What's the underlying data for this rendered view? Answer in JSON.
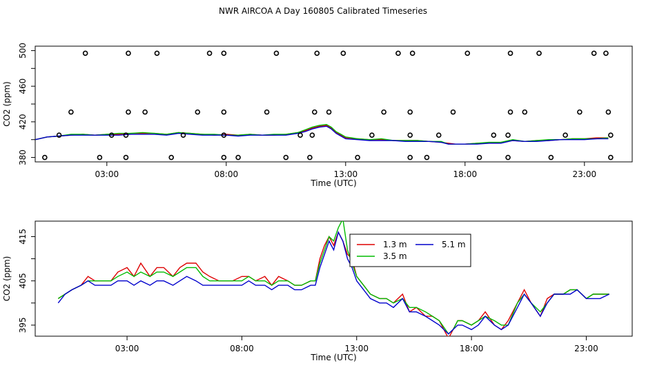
{
  "title": "NWR AIRCOA A  Day 160805  Calibrated Timeseries",
  "colors": {
    "s1": "#dd0000",
    "s2": "#00bb00",
    "s3": "#0000cc"
  },
  "chart_data": [
    {
      "type": "scatter",
      "xlabel": "Time (UTC)",
      "ylabel": "CO2 (ppm)",
      "xlim": [
        0,
        25
      ],
      "ylim": [
        375,
        505
      ],
      "xticks": [
        3,
        8,
        13,
        18,
        23
      ],
      "xtick_labels": [
        "03:00",
        "08:00",
        "13:00",
        "18:00",
        "23:00"
      ],
      "yticks": [
        380,
        400,
        420,
        440,
        460,
        480,
        500
      ],
      "ytick_labels": [
        "380",
        "",
        "420",
        "",
        "460",
        "",
        "500"
      ],
      "legend": "none",
      "points": [
        {
          "x": 0.4,
          "y": 380
        },
        {
          "x": 1.0,
          "y": 405
        },
        {
          "x": 1.5,
          "y": 431
        },
        {
          "x": 2.1,
          "y": 497
        },
        {
          "x": 2.7,
          "y": 380
        },
        {
          "x": 3.2,
          "y": 405
        },
        {
          "x": 3.8,
          "y": 380
        },
        {
          "x": 3.8,
          "y": 405
        },
        {
          "x": 3.9,
          "y": 431
        },
        {
          "x": 3.9,
          "y": 497
        },
        {
          "x": 4.6,
          "y": 431
        },
        {
          "x": 5.1,
          "y": 497
        },
        {
          "x": 5.7,
          "y": 380
        },
        {
          "x": 6.2,
          "y": 405
        },
        {
          "x": 6.8,
          "y": 431
        },
        {
          "x": 7.3,
          "y": 497
        },
        {
          "x": 7.9,
          "y": 380
        },
        {
          "x": 7.9,
          "y": 405
        },
        {
          "x": 7.9,
          "y": 431
        },
        {
          "x": 7.9,
          "y": 497
        },
        {
          "x": 8.5,
          "y": 380
        },
        {
          "x": 9.7,
          "y": 431
        },
        {
          "x": 10.1,
          "y": 497
        },
        {
          "x": 10.5,
          "y": 380
        },
        {
          "x": 11.1,
          "y": 405
        },
        {
          "x": 11.5,
          "y": 380
        },
        {
          "x": 11.6,
          "y": 405
        },
        {
          "x": 11.7,
          "y": 431
        },
        {
          "x": 11.8,
          "y": 497
        },
        {
          "x": 12.3,
          "y": 431
        },
        {
          "x": 12.9,
          "y": 497
        },
        {
          "x": 13.5,
          "y": 380
        },
        {
          "x": 14.1,
          "y": 405
        },
        {
          "x": 14.6,
          "y": 431
        },
        {
          "x": 15.2,
          "y": 497
        },
        {
          "x": 15.7,
          "y": 380
        },
        {
          "x": 15.7,
          "y": 405
        },
        {
          "x": 15.7,
          "y": 431
        },
        {
          "x": 15.8,
          "y": 497
        },
        {
          "x": 16.4,
          "y": 380
        },
        {
          "x": 16.9,
          "y": 405
        },
        {
          "x": 17.5,
          "y": 431
        },
        {
          "x": 18.1,
          "y": 497
        },
        {
          "x": 18.6,
          "y": 380
        },
        {
          "x": 19.2,
          "y": 405
        },
        {
          "x": 19.8,
          "y": 380
        },
        {
          "x": 19.8,
          "y": 405
        },
        {
          "x": 19.9,
          "y": 431
        },
        {
          "x": 19.9,
          "y": 497
        },
        {
          "x": 20.5,
          "y": 431
        },
        {
          "x": 21.1,
          "y": 497
        },
        {
          "x": 21.6,
          "y": 380
        },
        {
          "x": 22.2,
          "y": 405
        },
        {
          "x": 22.8,
          "y": 431
        },
        {
          "x": 23.4,
          "y": 497
        },
        {
          "x": 23.9,
          "y": 497
        },
        {
          "x": 24.0,
          "y": 431
        },
        {
          "x": 24.1,
          "y": 405
        },
        {
          "x": 24.1,
          "y": 380
        }
      ],
      "series": [
        {
          "color_key": "s1",
          "x": [
            0,
            0.5,
            1,
            1.5,
            2,
            2.5,
            3,
            3.5,
            4,
            4.5,
            5,
            5.5,
            6,
            6.5,
            7,
            7.5,
            8,
            8.5,
            9,
            9.5,
            10,
            10.5,
            11,
            11.3,
            11.6,
            11.9,
            12.2,
            12.4,
            12.6,
            12.8,
            13,
            13.5,
            14,
            14.5,
            15,
            15.5,
            16,
            16.5,
            17,
            17.3,
            17.6,
            18,
            18.5,
            19,
            19.5,
            20,
            20.5,
            21,
            21.5,
            22,
            22.5,
            23,
            23.5,
            24
          ],
          "y": [
            400,
            403,
            404,
            405,
            406,
            405,
            406,
            406,
            407,
            407,
            407,
            406,
            408,
            407,
            406,
            405,
            406,
            405,
            406,
            405,
            405,
            406,
            408,
            410,
            413,
            415,
            416,
            413,
            408,
            405,
            402,
            401,
            400,
            400,
            399,
            399,
            399,
            398,
            397,
            396,
            395,
            395,
            396,
            396,
            397,
            399,
            398,
            399,
            399,
            400,
            401,
            401,
            402,
            402
          ]
        },
        {
          "color_key": "s2",
          "x": [
            0,
            0.5,
            1,
            1.5,
            2,
            2.5,
            3,
            3.5,
            4,
            4.5,
            5,
            5.5,
            6,
            6.5,
            7,
            7.5,
            8,
            8.5,
            9,
            9.5,
            10,
            10.5,
            11,
            11.3,
            11.6,
            11.9,
            12.2,
            12.4,
            12.6,
            12.8,
            13,
            13.5,
            14,
            14.5,
            15,
            15.5,
            16,
            16.5,
            17,
            17.3,
            17.6,
            18,
            18.5,
            19,
            19.5,
            20,
            20.5,
            21,
            21.5,
            22,
            22.5,
            23,
            23.5,
            24
          ],
          "y": [
            400,
            403,
            404,
            406,
            406,
            405,
            406,
            407,
            407,
            408,
            407,
            406,
            408,
            407,
            406,
            406,
            405,
            405,
            406,
            405,
            406,
            406,
            408,
            411,
            414,
            416,
            417,
            414,
            409,
            406,
            403,
            401,
            400,
            401,
            399,
            399,
            399,
            398,
            398,
            395,
            395,
            395,
            396,
            397,
            397,
            400,
            398,
            399,
            400,
            400,
            401,
            401,
            401,
            402
          ]
        },
        {
          "color_key": "s3",
          "x": [
            0,
            0.5,
            1,
            1.5,
            2,
            2.5,
            3,
            3.5,
            4,
            4.5,
            5,
            5.5,
            6,
            6.5,
            7,
            7.5,
            8,
            8.5,
            9,
            9.5,
            10,
            10.5,
            11,
            11.3,
            11.6,
            11.9,
            12.2,
            12.4,
            12.6,
            12.8,
            13,
            13.5,
            14,
            14.5,
            15,
            15.5,
            16,
            16.5,
            17,
            17.3,
            17.6,
            18,
            18.5,
            19,
            19.5,
            20,
            20.5,
            21,
            21.5,
            22,
            22.5,
            23,
            23.5,
            24
          ],
          "y": [
            400,
            403,
            404,
            405,
            405,
            405,
            405,
            405,
            406,
            406,
            406,
            405,
            407,
            406,
            405,
            405,
            405,
            404,
            405,
            405,
            405,
            405,
            407,
            409,
            412,
            414,
            415,
            412,
            407,
            404,
            401,
            400,
            399,
            399,
            399,
            398,
            398,
            398,
            397,
            395,
            395,
            395,
            395,
            396,
            396,
            399,
            398,
            398,
            399,
            400,
            400,
            400,
            401,
            401
          ]
        }
      ]
    },
    {
      "type": "line",
      "xlabel": "Time (UTC)",
      "ylabel": "CO2 (ppm)",
      "xlim": [
        -1,
        25
      ],
      "ylim": [
        392.5,
        418.5
      ],
      "xticks": [
        3,
        8,
        13,
        18,
        23
      ],
      "xtick_labels": [
        "03:00",
        "08:00",
        "13:00",
        "18:00",
        "23:00"
      ],
      "yticks": [
        395,
        400,
        405,
        410,
        415
      ],
      "ytick_labels": [
        "395",
        "",
        "405",
        "",
        "415"
      ],
      "legend": "top-center",
      "series": [
        {
          "name": "1.3 m",
          "color_key": "s1",
          "x": [
            0,
            0.3,
            0.6,
            1,
            1.3,
            1.6,
            2,
            2.3,
            2.6,
            3,
            3.3,
            3.6,
            4,
            4.3,
            4.6,
            5,
            5.3,
            5.6,
            6,
            6.3,
            6.6,
            7,
            7.3,
            7.6,
            8,
            8.3,
            8.6,
            9,
            9.3,
            9.6,
            10,
            10.3,
            10.6,
            11,
            11.2,
            11.4,
            11.6,
            11.8,
            12,
            12.2,
            12.4,
            12.6,
            12.8,
            13,
            13.3,
            13.6,
            14,
            14.3,
            14.6,
            15,
            15.3,
            15.6,
            16,
            16.3,
            16.6,
            17,
            17.2,
            17.4,
            17.6,
            18,
            18.3,
            18.6,
            19,
            19.3,
            19.6,
            20,
            20.3,
            20.6,
            21,
            21.3,
            21.6,
            22,
            22.3,
            22.6,
            23,
            23.3,
            23.6,
            24
          ],
          "y": [
            401,
            402,
            403,
            404,
            406,
            405,
            405,
            405,
            407,
            408,
            406,
            409,
            406,
            408,
            408,
            406,
            408,
            409,
            409,
            407,
            406,
            405,
            405,
            405,
            406,
            406,
            405,
            406,
            404,
            406,
            405,
            404,
            404,
            405,
            405,
            410,
            413,
            415,
            413,
            416,
            414,
            411,
            410,
            406,
            404,
            402,
            401,
            401,
            400,
            402,
            398,
            399,
            397,
            397,
            396,
            392,
            394,
            396,
            396,
            395,
            396,
            398,
            395,
            394,
            396,
            400,
            403,
            400,
            397,
            401,
            402,
            402,
            403,
            403,
            401,
            402,
            402,
            402
          ]
        },
        {
          "name": "3.5 m",
          "color_key": "s2",
          "x": [
            0,
            0.3,
            0.6,
            1,
            1.3,
            1.6,
            2,
            2.3,
            2.6,
            3,
            3.3,
            3.6,
            4,
            4.3,
            4.6,
            5,
            5.3,
            5.6,
            6,
            6.3,
            6.6,
            7,
            7.3,
            7.6,
            8,
            8.3,
            8.6,
            9,
            9.3,
            9.6,
            10,
            10.3,
            10.6,
            11,
            11.2,
            11.4,
            11.6,
            11.8,
            12,
            12.2,
            12.4,
            12.6,
            12.8,
            13,
            13.3,
            13.6,
            14,
            14.3,
            14.6,
            15,
            15.3,
            15.6,
            16,
            16.3,
            16.6,
            17,
            17.2,
            17.4,
            17.6,
            18,
            18.3,
            18.6,
            19,
            19.3,
            19.6,
            20,
            20.3,
            20.6,
            21,
            21.3,
            21.6,
            22,
            22.3,
            22.6,
            23,
            23.3,
            23.6,
            24
          ],
          "y": [
            401,
            402,
            403,
            404,
            405,
            405,
            405,
            405,
            406,
            407,
            406,
            407,
            406,
            407,
            407,
            406,
            407,
            408,
            408,
            406,
            405,
            405,
            405,
            405,
            405,
            406,
            405,
            405,
            404,
            405,
            405,
            404,
            404,
            405,
            405,
            409,
            412,
            415,
            414,
            417,
            419,
            412,
            409,
            406,
            404,
            402,
            401,
            401,
            400,
            401,
            399,
            399,
            398,
            397,
            396,
            393,
            394,
            396,
            396,
            395,
            396,
            397,
            396,
            395,
            395,
            400,
            402,
            400,
            398,
            400,
            402,
            402,
            403,
            403,
            401,
            402,
            402,
            402
          ]
        },
        {
          "name": "5.1 m",
          "color_key": "s3",
          "x": [
            0,
            0.3,
            0.6,
            1,
            1.3,
            1.6,
            2,
            2.3,
            2.6,
            3,
            3.3,
            3.6,
            4,
            4.3,
            4.6,
            5,
            5.3,
            5.6,
            6,
            6.3,
            6.6,
            7,
            7.3,
            7.6,
            8,
            8.3,
            8.6,
            9,
            9.3,
            9.6,
            10,
            10.3,
            10.6,
            11,
            11.2,
            11.4,
            11.6,
            11.8,
            12,
            12.2,
            12.4,
            12.6,
            12.8,
            13,
            13.3,
            13.6,
            14,
            14.3,
            14.6,
            15,
            15.3,
            15.6,
            16,
            16.3,
            16.6,
            17,
            17.2,
            17.4,
            17.6,
            18,
            18.3,
            18.6,
            19,
            19.3,
            19.6,
            20,
            20.3,
            20.6,
            21,
            21.3,
            21.6,
            22,
            22.3,
            22.6,
            23,
            23.3,
            23.6,
            24
          ],
          "y": [
            400,
            402,
            403,
            404,
            405,
            404,
            404,
            404,
            405,
            405,
            404,
            405,
            404,
            405,
            405,
            404,
            405,
            406,
            405,
            404,
            404,
            404,
            404,
            404,
            404,
            405,
            404,
            404,
            403,
            404,
            404,
            403,
            403,
            404,
            404,
            408,
            411,
            414,
            412,
            416,
            414,
            410,
            408,
            405,
            403,
            401,
            400,
            400,
            399,
            401,
            398,
            398,
            397,
            396,
            395,
            393,
            394,
            395,
            395,
            394,
            395,
            397,
            395,
            394,
            395,
            399,
            402,
            400,
            397,
            400,
            402,
            402,
            402,
            403,
            401,
            401,
            401,
            402
          ]
        }
      ]
    }
  ]
}
